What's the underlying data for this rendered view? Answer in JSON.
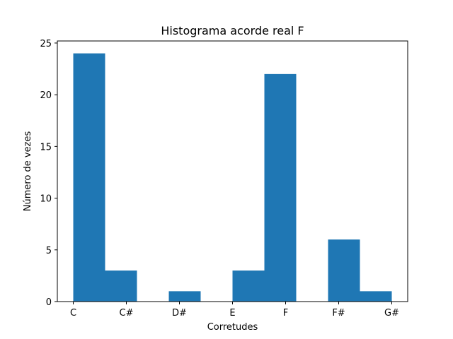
{
  "chart_data": {
    "type": "bar",
    "title": "Histograma acorde real F",
    "xlabel": "Corretudes",
    "ylabel": "Número de vezes",
    "bins": [
      {
        "start": 0.0,
        "end": 0.6,
        "value": 24
      },
      {
        "start": 0.6,
        "end": 1.2,
        "value": 3
      },
      {
        "start": 1.2,
        "end": 1.8,
        "value": 0
      },
      {
        "start": 1.8,
        "end": 2.4,
        "value": 1
      },
      {
        "start": 2.4,
        "end": 3.0,
        "value": 0
      },
      {
        "start": 3.0,
        "end": 3.6,
        "value": 3
      },
      {
        "start": 3.6,
        "end": 4.2,
        "value": 22
      },
      {
        "start": 4.2,
        "end": 4.8,
        "value": 0
      },
      {
        "start": 4.8,
        "end": 5.4,
        "value": 6
      },
      {
        "start": 5.4,
        "end": 6.0,
        "value": 1
      }
    ],
    "x_ticks": [
      {
        "value": 0,
        "label": "C"
      },
      {
        "value": 1,
        "label": "C#"
      },
      {
        "value": 2,
        "label": "D#"
      },
      {
        "value": 3,
        "label": "E"
      },
      {
        "value": 4,
        "label": "F"
      },
      {
        "value": 5,
        "label": "F#"
      },
      {
        "value": 6,
        "label": "G#"
      }
    ],
    "y_ticks": [
      0,
      5,
      10,
      15,
      20,
      25
    ],
    "xlim": [
      -0.3,
      6.3
    ],
    "ylim": [
      0,
      25.2
    ],
    "bar_color": "#1f77b4",
    "grid": false,
    "legend": "none"
  }
}
